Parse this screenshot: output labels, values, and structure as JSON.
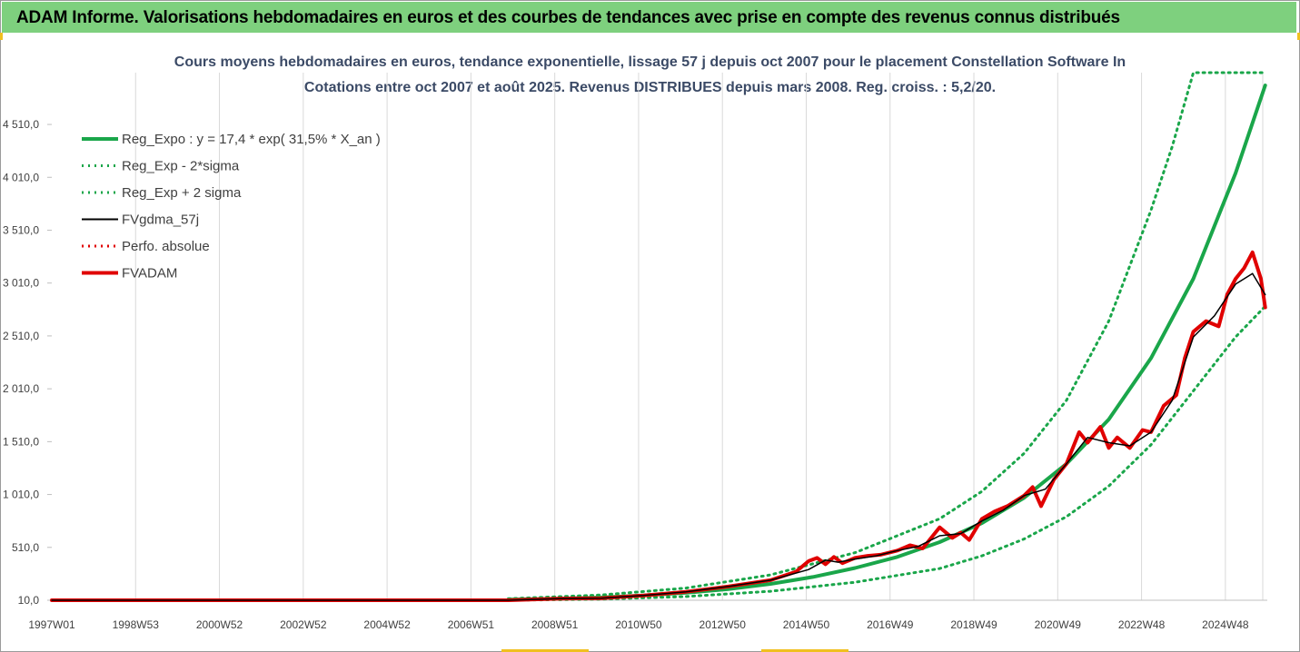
{
  "header": {
    "title": "ADAM Informe. Valorisations hebdomadaires en euros et des courbes de tendances avec prise en compte des revenus connus distribués"
  },
  "colors": {
    "header_bg": "#7ed07e",
    "trend": "#1aa64a",
    "band": "#1aa64a",
    "gdma": "#000000",
    "perfo": "#e00000",
    "fvadam": "#e00000",
    "title_text": "#3b4a66"
  },
  "chart_data": {
    "type": "line",
    "title": "Cours moyens hebdomadaires en euros, tendance exponentielle, lissage 57 j depuis oct 2007 pour le placement Constellation Software In",
    "subtitle": "Cotations entre oct 2007 et août 2025. Revenus DISTRIBUES depuis mars 2008. Reg. croiss. : 5,2/20.",
    "xlabel": "",
    "ylabel": "",
    "x_ticks": [
      "1997W01",
      "1998W53",
      "2000W52",
      "2002W52",
      "2004W52",
      "2006W51",
      "2008W51",
      "2010W50",
      "2012W50",
      "2014W50",
      "2016W49",
      "2018W49",
      "2020W49",
      "2022W48",
      "2024W48"
    ],
    "y_ticks": [
      "10,0",
      "510,0",
      "1 010,0",
      "1 510,0",
      "2 010,0",
      "2 510,0",
      "3 010,0",
      "3 510,0",
      "4 010,0",
      "4 510,0"
    ],
    "x_range": [
      1997.0,
      2025.75
    ],
    "ylim": [
      10,
      5000
    ],
    "grid": "vertical",
    "legend_position": "top-left",
    "legend": [
      {
        "label": "Reg_Expo : y = 17,4 * exp( 31,5% *  X_an )",
        "style": "solid-thick",
        "color": "#1aa64a"
      },
      {
        "label": "Reg_Exp - 2*sigma",
        "style": "dotted",
        "color": "#1aa64a"
      },
      {
        "label": "Reg_Exp + 2 sigma",
        "style": "dotted",
        "color": "#1aa64a"
      },
      {
        "label": "FVgdma_57j",
        "style": "solid",
        "color": "#000000"
      },
      {
        "label": "Perfo. absolue",
        "style": "dotted",
        "color": "#e00000"
      },
      {
        "label": "FVADAM",
        "style": "solid-thick",
        "color": "#e00000"
      }
    ],
    "series": [
      {
        "name": "Reg_Expo : y = 17,4 * exp( 31,5% *  X_an )",
        "x": [
          2007.8,
          2009,
          2010,
          2011,
          2012,
          2013,
          2014,
          2015,
          2016,
          2017,
          2018,
          2019,
          2020,
          2021,
          2022,
          2023,
          2024,
          2025,
          2025.7
        ],
        "y": [
          17,
          25,
          37,
          55,
          80,
          115,
          165,
          230,
          315,
          420,
          560,
          740,
          980,
          1300,
          1720,
          2300,
          3050,
          4050,
          4880
        ]
      },
      {
        "name": "Reg_Exp - 2*sigma",
        "x": [
          2007.8,
          2010,
          2012,
          2014,
          2016,
          2018,
          2019,
          2020,
          2021,
          2022,
          2023,
          2024,
          2025,
          2025.7
        ],
        "y": [
          10,
          20,
          45,
          95,
          180,
          310,
          430,
          590,
          800,
          1090,
          1480,
          1990,
          2500,
          2790
        ]
      },
      {
        "name": "Reg_Exp + 2 sigma",
        "x": [
          2007.8,
          2010,
          2012,
          2014,
          2016,
          2018,
          2019,
          2020,
          2021,
          2022,
          2023,
          2023.5,
          2024,
          2025,
          2025.7
        ],
        "y": [
          25,
          60,
          125,
          250,
          460,
          780,
          1040,
          1400,
          1900,
          2650,
          3700,
          4300,
          5000,
          5000,
          5000
        ]
      },
      {
        "name": "FVgdma_57j",
        "x": [
          1997.0,
          2007.8,
          2009,
          2010,
          2011,
          2012,
          2013,
          2014,
          2014.9,
          2015.3,
          2015.6,
          2016,
          2016.5,
          2017,
          2017.5,
          2018,
          2018.5,
          2019,
          2019.5,
          2020,
          2020.5,
          2021,
          2021.5,
          2022,
          2022.5,
          2023,
          2023.5,
          2024,
          2024.5,
          2025,
          2025.4,
          2025.7
        ],
        "y": [
          10,
          10,
          25,
          30,
          55,
          90,
          140,
          200,
          300,
          390,
          370,
          400,
          430,
          480,
          520,
          620,
          640,
          760,
          860,
          1000,
          1060,
          1300,
          1550,
          1500,
          1470,
          1600,
          1900,
          2500,
          2700,
          3000,
          3100,
          2900
        ]
      },
      {
        "name": "Perfo. absolue",
        "x": [
          1997.0,
          2007.7
        ],
        "y": [
          10,
          10
        ]
      },
      {
        "name": "FVADAM",
        "x": [
          1997.0,
          2007.8,
          2009,
          2010,
          2011,
          2012,
          2013,
          2014,
          2014.6,
          2014.9,
          2015.1,
          2015.3,
          2015.5,
          2015.7,
          2016,
          2016.3,
          2016.6,
          2017,
          2017.3,
          2017.6,
          2018,
          2018.3,
          2018.5,
          2018.7,
          2019,
          2019.3,
          2019.6,
          2020,
          2020.2,
          2020.4,
          2020.7,
          2021,
          2021.3,
          2021.5,
          2021.8,
          2022,
          2022.2,
          2022.5,
          2022.8,
          2023,
          2023.3,
          2023.6,
          2023.8,
          2024,
          2024.3,
          2024.6,
          2024.8,
          2025,
          2025.2,
          2025.4,
          2025.6,
          2025.7
        ],
        "y": [
          10,
          10,
          25,
          30,
          55,
          90,
          140,
          200,
          280,
          380,
          410,
          350,
          420,
          360,
          410,
          430,
          440,
          480,
          530,
          500,
          700,
          600,
          650,
          580,
          780,
          850,
          900,
          1000,
          1080,
          900,
          1150,
          1300,
          1600,
          1500,
          1650,
          1450,
          1550,
          1450,
          1620,
          1600,
          1850,
          1950,
          2300,
          2550,
          2650,
          2600,
          2900,
          3050,
          3150,
          3300,
          3050,
          2780
        ]
      }
    ]
  }
}
